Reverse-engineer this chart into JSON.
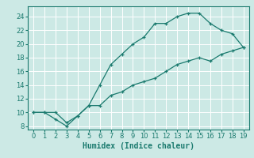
{
  "xlabel": "Humidex (Indice chaleur)",
  "x_upper": [
    0,
    1,
    2,
    3,
    4,
    5,
    6,
    7,
    8,
    9,
    10,
    11,
    12,
    13,
    14,
    15,
    16,
    17,
    18,
    19
  ],
  "y_upper": [
    10,
    10,
    10,
    8.5,
    9.5,
    11,
    14,
    17,
    18.5,
    20,
    21,
    23,
    23,
    24,
    24.5,
    24.5,
    23,
    22,
    21.5,
    19.5
  ],
  "x_lower": [
    0,
    1,
    2,
    3,
    4,
    5,
    6,
    7,
    8,
    9,
    10,
    11,
    12,
    13,
    14,
    15,
    16,
    17,
    18,
    19
  ],
  "y_lower": [
    10,
    10,
    9,
    8,
    9.5,
    11,
    11,
    12.5,
    13,
    14,
    14.5,
    15,
    16,
    17,
    17.5,
    18,
    17.5,
    18.5,
    19,
    19.5
  ],
  "line_color": "#1a7a6e",
  "bg_color": "#cce9e5",
  "grid_color": "#ffffff",
  "xlim": [
    -0.5,
    19.5
  ],
  "ylim": [
    7.5,
    25.5
  ],
  "xticks": [
    0,
    1,
    2,
    3,
    4,
    5,
    6,
    7,
    8,
    9,
    10,
    11,
    12,
    13,
    14,
    15,
    16,
    17,
    18,
    19
  ],
  "yticks": [
    8,
    10,
    12,
    14,
    16,
    18,
    20,
    22,
    24
  ],
  "xlabel_fontsize": 7.0,
  "tick_fontsize": 6.0
}
